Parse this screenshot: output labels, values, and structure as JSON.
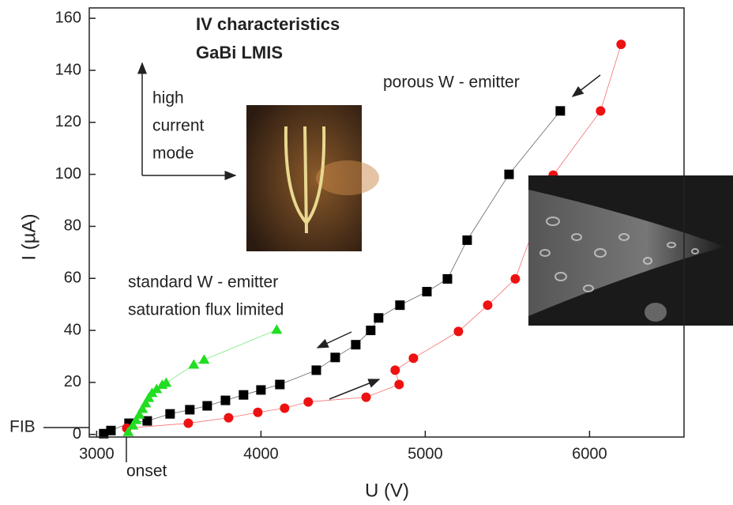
{
  "chart_data": {
    "type": "scatter",
    "x_label": "U (V)",
    "y_label": "I (µA)",
    "xlim": [
      2955,
      6575
    ],
    "ylim": [
      -1,
      164
    ],
    "xticks": [
      3000,
      4000,
      5000,
      6000
    ],
    "yticks": [
      0,
      20,
      40,
      60,
      80,
      100,
      120,
      140,
      160
    ],
    "connect": true,
    "series": [
      {
        "color": "#000000",
        "marker": "square",
        "x": [
          3043,
          3087,
          3197,
          3308,
          3447,
          3567,
          3673,
          3784,
          3894,
          4000,
          4115,
          4337,
          4452,
          4577,
          4668,
          4716,
          4846,
          5010,
          5135,
          5255,
          5510,
          5822
        ],
        "values": [
          0.3,
          1.5,
          4.3,
          5.2,
          7.9,
          9.5,
          11,
          13.1,
          15.2,
          17.1,
          19.2,
          24.7,
          29.6,
          34.5,
          40,
          44.8,
          49.7,
          54.9,
          59.8,
          74.7,
          100,
          124.4
        ]
      },
      {
        "color": "#ee1111",
        "marker": "circle",
        "x": [
          3183,
          3558,
          3803,
          3981,
          4144,
          4288,
          4640,
          4841,
          4817,
          4928,
          5202,
          5380,
          5548,
          5779,
          6067,
          6192
        ],
        "values": [
          2.4,
          4.3,
          6.4,
          8.5,
          10.1,
          12.5,
          14.3,
          19.2,
          24.7,
          29.3,
          39.6,
          49.7,
          59.8,
          99.7,
          124.4,
          150
        ]
      },
      {
        "color": "#22dd22",
        "marker": "triangle",
        "x": [
          3192,
          3221,
          3240,
          3260,
          3279,
          3298,
          3317,
          3337,
          3365,
          3399,
          3423,
          3591,
          3654,
          4096
        ],
        "values": [
          0.9,
          3.4,
          5.5,
          7.6,
          9.8,
          11.9,
          14,
          15.9,
          17.4,
          19,
          19.8,
          26.8,
          28.7,
          40.2
        ]
      }
    ],
    "annotations": [
      "IV characteristics",
      "GaBi LMIS",
      "porous W - emitter",
      "high",
      "current",
      "mode",
      "standard W - emitter",
      "saturation flux limited",
      "FIB",
      "onset"
    ]
  }
}
